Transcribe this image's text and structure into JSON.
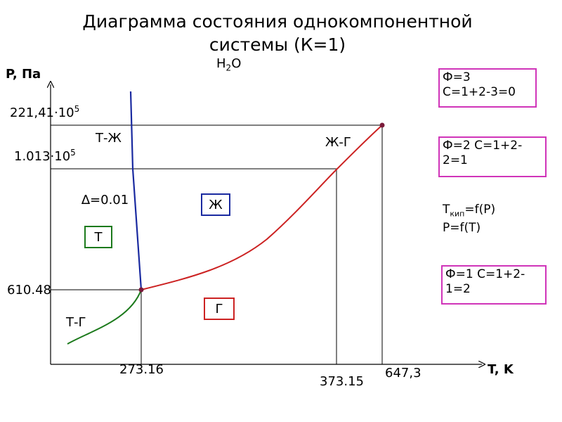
{
  "title": "Диаграмма состояния однокомпонентной\nсистемы (К=1)",
  "formula": {
    "base": "H",
    "sub": "2",
    "rest": "O"
  },
  "axes": {
    "y_label": "P, Па",
    "x_label": "T, K"
  },
  "ticks": {
    "y_critical": {
      "mantissa": "221,41·10",
      "exp": "5"
    },
    "y_atm": {
      "mantissa": "1.013·10",
      "exp": "5"
    },
    "y_triple": "610.48",
    "x_triple": "273.16",
    "x_boil": "373.15",
    "x_critical": "647,3"
  },
  "region_labels": {
    "solid_liquid": "Т-Ж",
    "liquid_gas": "Ж-Г",
    "solid_gas": "Т-Г",
    "delta": "∆=0.01"
  },
  "phases": {
    "solid": "Т",
    "liquid": "Ж",
    "gas": "Г"
  },
  "info": {
    "triple_point": "Ф=3\nС=1+2-3=0",
    "two_phase": "Ф=2 С=1+2-\n2=1",
    "boiling": {
      "t_base": "T",
      "t_sub": "кип",
      "t_rest": "=f(P)",
      "line2": "P=f(T)"
    },
    "one_phase": "Ф=1 С=1+2-\n1=2"
  },
  "colors": {
    "solid_liquid_curve": "#1a2aa0",
    "liquid_gas_curve": "#cc2222",
    "solid_gas_curve": "#1c7a1c",
    "solid_box": "#1c7a1c",
    "liquid_box": "#1a2aa0",
    "gas_box": "#cc2222",
    "info_border": "#d034b9"
  }
}
